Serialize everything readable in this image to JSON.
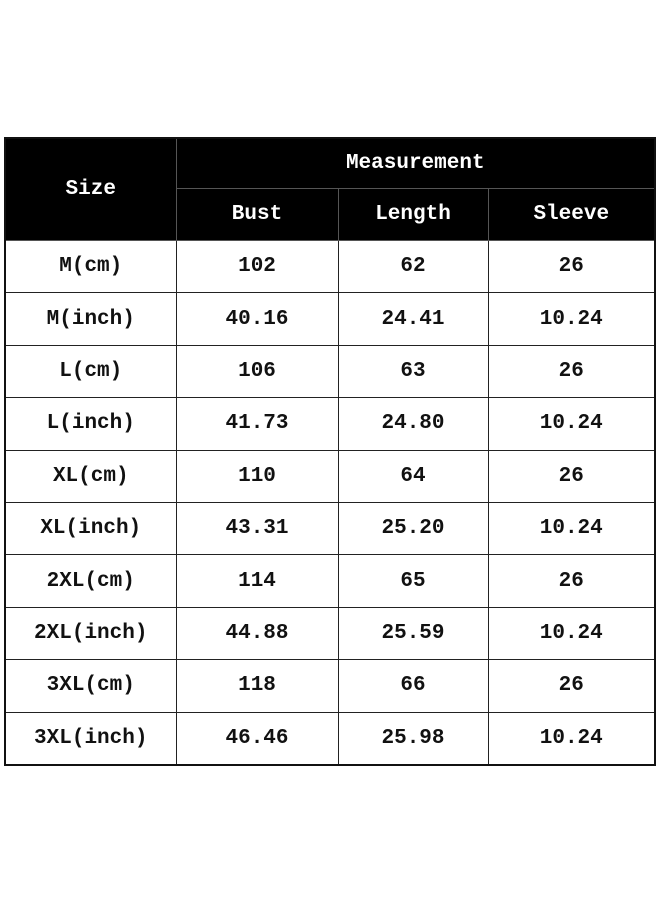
{
  "header": {
    "size_label": "Size",
    "group_label": "Measurement",
    "columns": [
      "Bust",
      "Length",
      "Sleeve"
    ]
  },
  "rows": [
    {
      "size": "M(cm)",
      "bust": "102",
      "length": "62",
      "sleeve": "26"
    },
    {
      "size": "M(inch)",
      "bust": "40.16",
      "length": "24.41",
      "sleeve": "10.24"
    },
    {
      "size": "L(cm)",
      "bust": "106",
      "length": "63",
      "sleeve": "26"
    },
    {
      "size": "L(inch)",
      "bust": "41.73",
      "length": "24.80",
      "sleeve": "10.24"
    },
    {
      "size": "XL(cm)",
      "bust": "110",
      "length": "64",
      "sleeve": "26"
    },
    {
      "size": "XL(inch)",
      "bust": "43.31",
      "length": "25.20",
      "sleeve": "10.24"
    },
    {
      "size": "2XL(cm)",
      "bust": "114",
      "length": "65",
      "sleeve": "26"
    },
    {
      "size": "2XL(inch)",
      "bust": "44.88",
      "length": "25.59",
      "sleeve": "10.24"
    },
    {
      "size": "3XL(cm)",
      "bust": "118",
      "length": "66",
      "sleeve": "26"
    },
    {
      "size": "3XL(inch)",
      "bust": "46.46",
      "length": "25.98",
      "sleeve": "10.24"
    }
  ]
}
